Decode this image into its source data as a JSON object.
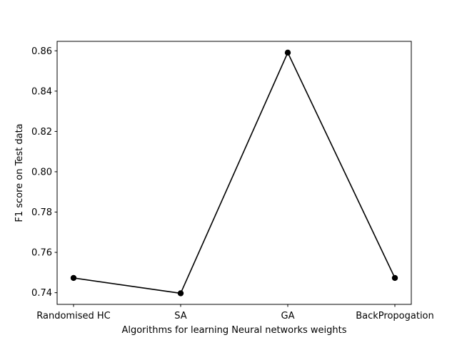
{
  "chart_data": {
    "type": "line",
    "title": "",
    "xlabel": "Algorithms for learning Neural networks weights",
    "ylabel": "F1 score on Test data",
    "categories": [
      "Randomised HC",
      "SA",
      "GA",
      "BackPropogation"
    ],
    "series": [
      {
        "values": [
          0.7473,
          0.7397,
          0.8591,
          0.7473
        ],
        "color": "#000000",
        "marker": "circle"
      }
    ],
    "ylim": [
      0.7342,
      0.8647
    ],
    "yticks": [
      0.74,
      0.76,
      0.78,
      0.8,
      0.82,
      0.84,
      0.86
    ],
    "ytick_labels": [
      "0.74",
      "0.76",
      "0.78",
      "0.80",
      "0.82",
      "0.84",
      "0.86"
    ],
    "grid": false,
    "legend": "none"
  }
}
